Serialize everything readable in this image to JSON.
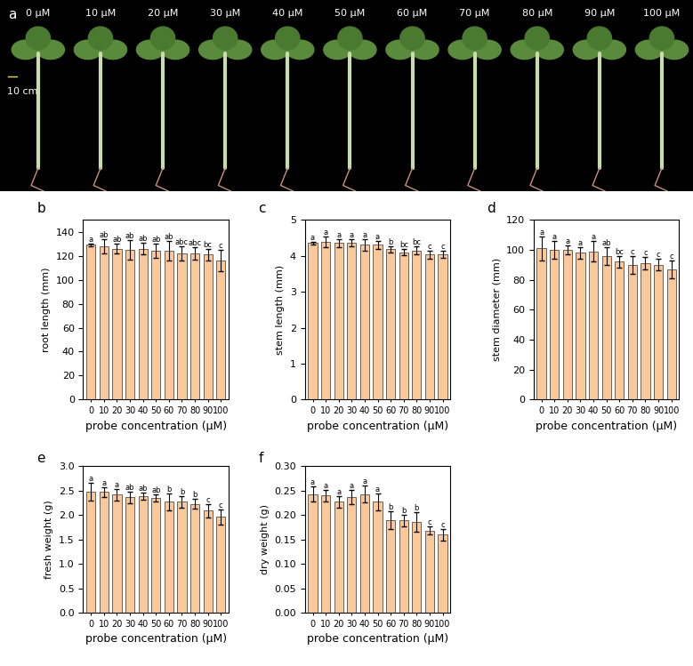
{
  "photo": {
    "panel": "a",
    "labels": [
      "0 μM",
      "10 μM",
      "20 μM",
      "30 μM",
      "40 μM",
      "50 μM",
      "60 μM",
      "70 μM",
      "80 μM",
      "90 μM",
      "100 μM"
    ],
    "scale_bar": "10 cm"
  },
  "chart_data": [
    {
      "type": "bar",
      "panel": "b",
      "ylabel": "root length (mm)",
      "xlabel": "probe concentration (μM)",
      "categories": [
        "0",
        "10",
        "20",
        "30",
        "40",
        "50",
        "60",
        "70",
        "80",
        "90",
        "100"
      ],
      "values": [
        129,
        128,
        126,
        125,
        126,
        124,
        124,
        122,
        122,
        121,
        116
      ],
      "errors": [
        1,
        6,
        4,
        8,
        5,
        6,
        8,
        6,
        5,
        5,
        9
      ],
      "letters": [
        "a",
        "ab",
        "ab",
        "ab",
        "ab",
        "ab",
        "ab",
        "abc",
        "abc",
        "bc",
        "c"
      ],
      "color": "#f9c89b",
      "ylim": [
        0,
        150
      ],
      "yticks": [
        0,
        20,
        40,
        60,
        80,
        100,
        120,
        140
      ]
    },
    {
      "type": "bar",
      "panel": "c",
      "ylabel": "stem length (mm)",
      "xlabel": "probe concentration (μM)",
      "categories": [
        "0",
        "10",
        "20",
        "30",
        "40",
        "50",
        "60",
        "70",
        "80",
        "90",
        "100"
      ],
      "values": [
        4.35,
        4.38,
        4.35,
        4.37,
        4.3,
        4.3,
        4.18,
        4.1,
        4.15,
        4.03,
        4.03
      ],
      "errors": [
        0.03,
        0.15,
        0.1,
        0.1,
        0.15,
        0.12,
        0.08,
        0.08,
        0.12,
        0.12,
        0.1
      ],
      "letters": [
        "a",
        "a",
        "a",
        "a",
        "a",
        "a",
        "b",
        "bc",
        "bc",
        "c",
        "c"
      ],
      "color": "#f9c89b",
      "ylim": [
        0,
        5
      ],
      "yticks": [
        0,
        1,
        2,
        3,
        4,
        5
      ]
    },
    {
      "type": "bar",
      "panel": "d",
      "ylabel": "stem diameter (mm)",
      "xlabel": "probe concentration (μM)",
      "categories": [
        "0",
        "10",
        "20",
        "30",
        "40",
        "50",
        "60",
        "70",
        "80",
        "90",
        "100"
      ],
      "values": [
        101,
        100,
        100,
        98,
        99,
        96,
        92,
        90,
        91,
        90,
        87
      ],
      "errors": [
        8,
        6,
        3,
        4,
        7,
        6,
        4,
        6,
        4,
        4,
        6
      ],
      "letters": [
        "a",
        "a",
        "a",
        "a",
        "a",
        "ab",
        "bc",
        "c",
        "c",
        "c",
        "c"
      ],
      "color": "#f9c89b",
      "ylim": [
        0,
        120
      ],
      "yticks": [
        0,
        20,
        40,
        60,
        80,
        100,
        120
      ]
    },
    {
      "type": "bar",
      "panel": "e",
      "ylabel": "fresh weight (g)",
      "xlabel": "probe concentration (μM)",
      "categories": [
        "0",
        "10",
        "20",
        "30",
        "40",
        "50",
        "60",
        "70",
        "80",
        "90",
        "100"
      ],
      "values": [
        2.48,
        2.47,
        2.42,
        2.36,
        2.39,
        2.35,
        2.27,
        2.27,
        2.23,
        2.09,
        1.96
      ],
      "errors": [
        0.18,
        0.1,
        0.12,
        0.12,
        0.07,
        0.07,
        0.18,
        0.12,
        0.1,
        0.14,
        0.16
      ],
      "letters": [
        "a",
        "a",
        "a",
        "ab",
        "ab",
        "ab",
        "b",
        "b",
        "b",
        "c",
        "c"
      ],
      "color": "#f9c89b",
      "ylim": [
        0,
        3.0
      ],
      "yticks": [
        {
          "value": 0,
          "label": "0.0"
        },
        0.5,
        {
          "value": 1,
          "label": "1.0"
        },
        1.5,
        {
          "value": 2,
          "label": "2.0"
        },
        2.5,
        {
          "value": 3,
          "label": "3.0"
        }
      ]
    },
    {
      "type": "bar",
      "panel": "f",
      "ylabel": "dry weight (g)",
      "xlabel": "probe concentration (μM)",
      "categories": [
        "0",
        "10",
        "20",
        "30",
        "40",
        "50",
        "60",
        "70",
        "80",
        "90",
        "100"
      ],
      "values": [
        0.243,
        0.24,
        0.227,
        0.237,
        0.243,
        0.227,
        0.19,
        0.189,
        0.186,
        0.168,
        0.16
      ],
      "errors": [
        0.015,
        0.012,
        0.012,
        0.015,
        0.018,
        0.018,
        0.018,
        0.012,
        0.02,
        0.008,
        0.012
      ],
      "letters": [
        "a",
        "a",
        "a",
        "a",
        "a",
        "a",
        "b",
        "b",
        "b",
        "c",
        "c"
      ],
      "color": "#f9c89b",
      "ylim": [
        0,
        0.3
      ],
      "yticks": [
        {
          "value": 0,
          "label": "0.00"
        },
        0.05,
        {
          "value": 0.1,
          "label": "0.10"
        },
        0.15,
        {
          "value": 0.2,
          "label": "0.20"
        },
        0.25,
        {
          "value": 0.3,
          "label": "0.30"
        }
      ]
    }
  ]
}
